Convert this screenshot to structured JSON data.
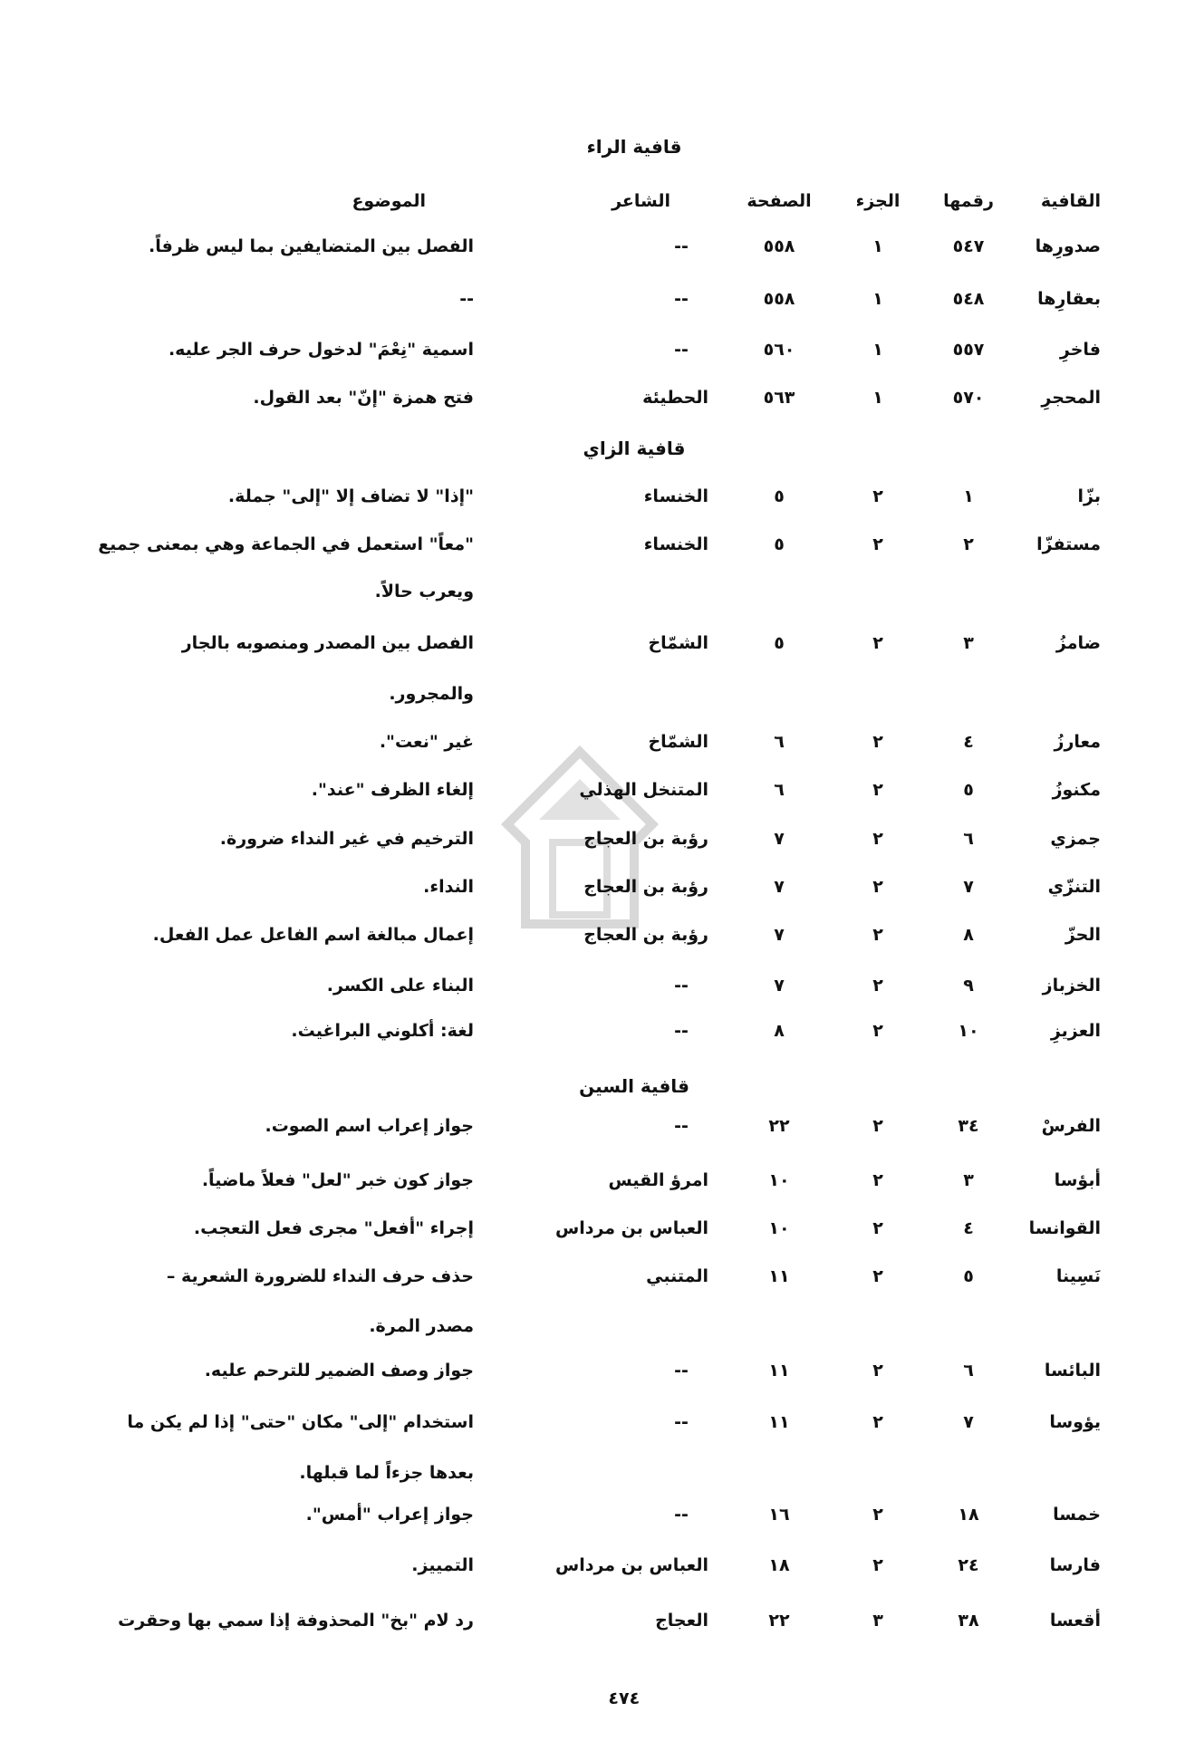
{
  "headers": {
    "qafiya": "القافية",
    "raqm": "رقمها",
    "juz": "الجزء",
    "safha": "الصفحة",
    "shaer": "الشاعر",
    "mawdu": "الموضوع"
  },
  "sections": [
    {
      "title": "قافية الراء",
      "rows": [
        {
          "qafiya": "صدورِها",
          "raqm": "٥٤٧",
          "juz": "١",
          "safha": "٥٥٨",
          "shaer": "--",
          "mawdu": [
            "الفصل بين المتضايفين بما ليس ظرفاً."
          ]
        },
        {
          "qafiya": "بعقارِها",
          "raqm": "٥٤٨",
          "juz": "١",
          "safha": "٥٥٨",
          "shaer": "--",
          "mawdu": [
            "--"
          ]
        },
        {
          "qafiya": "فاخرِ",
          "raqm": "٥٥٧",
          "juz": "١",
          "safha": "٥٦٠",
          "shaer": "--",
          "mawdu": [
            "اسمية \"نِعْمَ\" لدخول حرف الجر عليه."
          ]
        },
        {
          "qafiya": "المحجرِ",
          "raqm": "٥٧٠",
          "juz": "١",
          "safha": "٥٦٣",
          "shaer": "الحطيئة",
          "mawdu": [
            "فتح همزة \"إنّ\" بعد القول."
          ]
        }
      ]
    },
    {
      "title": "قافية الزاي",
      "rows": [
        {
          "qafiya": "بزّا",
          "raqm": "١",
          "juz": "٢",
          "safha": "٥",
          "shaer": "الخنساء",
          "mawdu": [
            "\"إذا\" لا تضاف إلا \"إلى\" جملة."
          ]
        },
        {
          "qafiya": "مستفزّا",
          "raqm": "٢",
          "juz": "٢",
          "safha": "٥",
          "shaer": "الخنساء",
          "mawdu": [
            "\"معاً\" استعمل في الجماعة وهي بمعنى جميع",
            "ويعرب حالاً."
          ]
        },
        {
          "qafiya": "ضامزُ",
          "raqm": "٣",
          "juz": "٢",
          "safha": "٥",
          "shaer": "الشمّاخ",
          "mawdu": [
            "الفصل بين المصدر ومنصوبه بالجار",
            "والمجرور."
          ]
        },
        {
          "qafiya": "معارزُ",
          "raqm": "٤",
          "juz": "٢",
          "safha": "٦",
          "shaer": "الشمّاخ",
          "mawdu": [
            "غير \"نعت\"."
          ]
        },
        {
          "qafiya": "مكنوزُ",
          "raqm": "٥",
          "juz": "٢",
          "safha": "٦",
          "shaer": "المتنخل الهذلي",
          "mawdu": [
            "إلغاء الظرف \"عند\"."
          ]
        },
        {
          "qafiya": "جمزي",
          "raqm": "٦",
          "juz": "٢",
          "safha": "٧",
          "shaer": "رؤبة بن العجاج",
          "mawdu": [
            "الترخيم في غير النداء ضرورة."
          ]
        },
        {
          "qafiya": "التنزّي",
          "raqm": "٧",
          "juz": "٢",
          "safha": "٧",
          "shaer": "رؤبة بن العجاج",
          "mawdu": [
            "النداء."
          ]
        },
        {
          "qafiya": "الحزّ",
          "raqm": "٨",
          "juz": "٢",
          "safha": "٧",
          "shaer": "رؤبة بن العجاج",
          "mawdu": [
            "إعمال مبالغة اسم الفاعل عمل الفعل."
          ]
        },
        {
          "qafiya": "الخزباز",
          "raqm": "٩",
          "juz": "٢",
          "safha": "٧",
          "shaer": "--",
          "mawdu": [
            "البناء على الكسر."
          ]
        },
        {
          "qafiya": "العزيزِ",
          "raqm": "١٠",
          "juz": "٢",
          "safha": "٨",
          "shaer": "--",
          "mawdu": [
            "لغة: أكلوني البراغيث."
          ]
        }
      ]
    },
    {
      "title": "قافية السين",
      "rows": [
        {
          "qafiya": "الفرسْ",
          "raqm": "٣٤",
          "juz": "٢",
          "safha": "٢٢",
          "shaer": "--",
          "mawdu": [
            "جواز إعراب اسم الصوت."
          ]
        },
        {
          "qafiya": "أبؤسا",
          "raqm": "٣",
          "juz": "٢",
          "safha": "١٠",
          "shaer": "امرؤ القيس",
          "mawdu": [
            "جواز كون خبر \"لعل\" فعلاً ماضياً."
          ]
        },
        {
          "qafiya": "القوانسا",
          "raqm": "٤",
          "juz": "٢",
          "safha": "١٠",
          "shaer": "العباس بن مرداس",
          "mawdu": [
            "إجراء \"أفعل\" مجرى فعل التعجب."
          ]
        },
        {
          "qafiya": "نَسِينا",
          "raqm": "٥",
          "juz": "٢",
          "safha": "١١",
          "shaer": "المتنبي",
          "mawdu": [
            "حذف حرف النداء للضرورة الشعرية –",
            "مصدر المرة."
          ]
        },
        {
          "qafiya": "البائسا",
          "raqm": "٦",
          "juz": "٢",
          "safha": "١١",
          "shaer": "--",
          "mawdu": [
            "جواز وصف الضمير للترحم عليه."
          ]
        },
        {
          "qafiya": "يؤوسا",
          "raqm": "٧",
          "juz": "٢",
          "safha": "١١",
          "shaer": "--",
          "mawdu": [
            "استخدام \"إلى\" مكان \"حتى\" إذا لم يكن ما",
            "بعدها جزءاً لما قبلها."
          ]
        },
        {
          "qafiya": "خمسا",
          "raqm": "١٨",
          "juz": "٢",
          "safha": "١٦",
          "shaer": "--",
          "mawdu": [
            "جواز إعراب \"أمس\"."
          ]
        },
        {
          "qafiya": "فارسا",
          "raqm": "٢٤",
          "juz": "٢",
          "safha": "١٨",
          "shaer": "العباس بن مرداس",
          "mawdu": [
            "التمييز."
          ]
        },
        {
          "qafiya": "أقعسا",
          "raqm": "٣٨",
          "juz": "٣",
          "safha": "٢٢",
          "shaer": "العجاج",
          "mawdu": [
            "رد لام \"بخ\" المحذوفة إذا سمي بها وحقرت"
          ]
        }
      ]
    }
  ],
  "page_number": "٤٧٤"
}
